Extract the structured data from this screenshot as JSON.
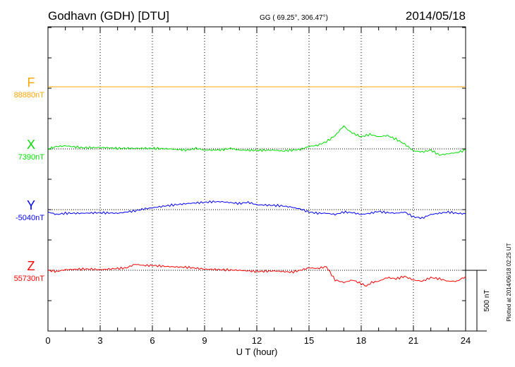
{
  "header": {
    "station": "Godhavn (GDH)  [DTU]",
    "coords": "GG ( 69.25°, 306.47°)",
    "date": "2014/05/18"
  },
  "footer_note": "Plotted at 2014/06/18 02:25 UT",
  "scale_label": "500 nT",
  "chart_data": {
    "type": "line",
    "xlabel": "U T (hour)",
    "xlim": [
      0,
      24
    ],
    "x_ticks": [
      "0",
      "3",
      "6",
      "9",
      "12",
      "15",
      "18",
      "21",
      "24"
    ],
    "grid": true,
    "scale_bar_nT": 500,
    "series": [
      {
        "name": "F",
        "baseline_label": "88880nT",
        "color": "#ffa500",
        "x": [
          0,
          24
        ],
        "values": [
          0,
          0
        ]
      },
      {
        "name": "X",
        "baseline_label": "7390nT",
        "color": "#00dd00",
        "x": [
          0,
          0.5,
          1,
          2,
          3,
          4,
          5,
          6,
          7,
          8,
          8.5,
          9,
          10,
          10.5,
          11,
          12,
          13,
          13.5,
          14,
          14.5,
          15,
          15.5,
          16,
          16.5,
          17,
          17.2,
          17.5,
          18,
          18.5,
          19,
          19.5,
          20,
          20.5,
          21,
          21.5,
          22,
          22.5,
          23,
          23.5,
          24
        ],
        "values": [
          0,
          20,
          25,
          10,
          12,
          5,
          5,
          5,
          0,
          -10,
          5,
          -10,
          -8,
          5,
          -10,
          -12,
          -10,
          -18,
          -10,
          -5,
          20,
          30,
          60,
          110,
          190,
          160,
          130,
          100,
          120,
          100,
          110,
          80,
          40,
          -15,
          -25,
          -10,
          -50,
          -40,
          -30,
          -10
        ]
      },
      {
        "name": "Y",
        "baseline_label": "-5040nT",
        "color": "#0000ff",
        "x": [
          0,
          0.5,
          1,
          2,
          3,
          4,
          5,
          5.5,
          6,
          7,
          8,
          9,
          9.5,
          10,
          11,
          11.5,
          12,
          13,
          13.5,
          14,
          14.5,
          15,
          15.5,
          16,
          16.5,
          17,
          17.5,
          18,
          18.5,
          19,
          19.5,
          20,
          20.5,
          21,
          21.5,
          22,
          22.5,
          23,
          23.5,
          24
        ],
        "values": [
          -20,
          -40,
          -30,
          -30,
          -25,
          -30,
          -10,
          5,
          15,
          35,
          50,
          60,
          65,
          65,
          50,
          60,
          40,
          35,
          30,
          20,
          5,
          -20,
          -30,
          -30,
          -40,
          -20,
          -25,
          -40,
          -30,
          -15,
          -25,
          -30,
          -20,
          -60,
          -70,
          -40,
          -30,
          -20,
          -30,
          -35
        ]
      },
      {
        "name": "Z",
        "baseline_label": "55730nT",
        "color": "#ff0000",
        "x": [
          0,
          0.5,
          1,
          2,
          2.5,
          3,
          4,
          4.5,
          5,
          5.5,
          6,
          7,
          8,
          9,
          10,
          11,
          12,
          13,
          14,
          14.5,
          15,
          15.5,
          16,
          16.5,
          17,
          17.5,
          18,
          18.3,
          18.6,
          19,
          19.5,
          20,
          20.5,
          21,
          21.5,
          22,
          22.5,
          23,
          23.5,
          24
        ],
        "values": [
          0,
          -10,
          5,
          10,
          10,
          5,
          15,
          20,
          50,
          40,
          40,
          30,
          25,
          10,
          5,
          0,
          -10,
          -5,
          -15,
          0,
          20,
          15,
          30,
          -80,
          -100,
          -80,
          -110,
          -130,
          -100,
          -90,
          -60,
          -70,
          -50,
          -80,
          -90,
          -60,
          -70,
          -90,
          -90,
          -50
        ]
      }
    ]
  }
}
